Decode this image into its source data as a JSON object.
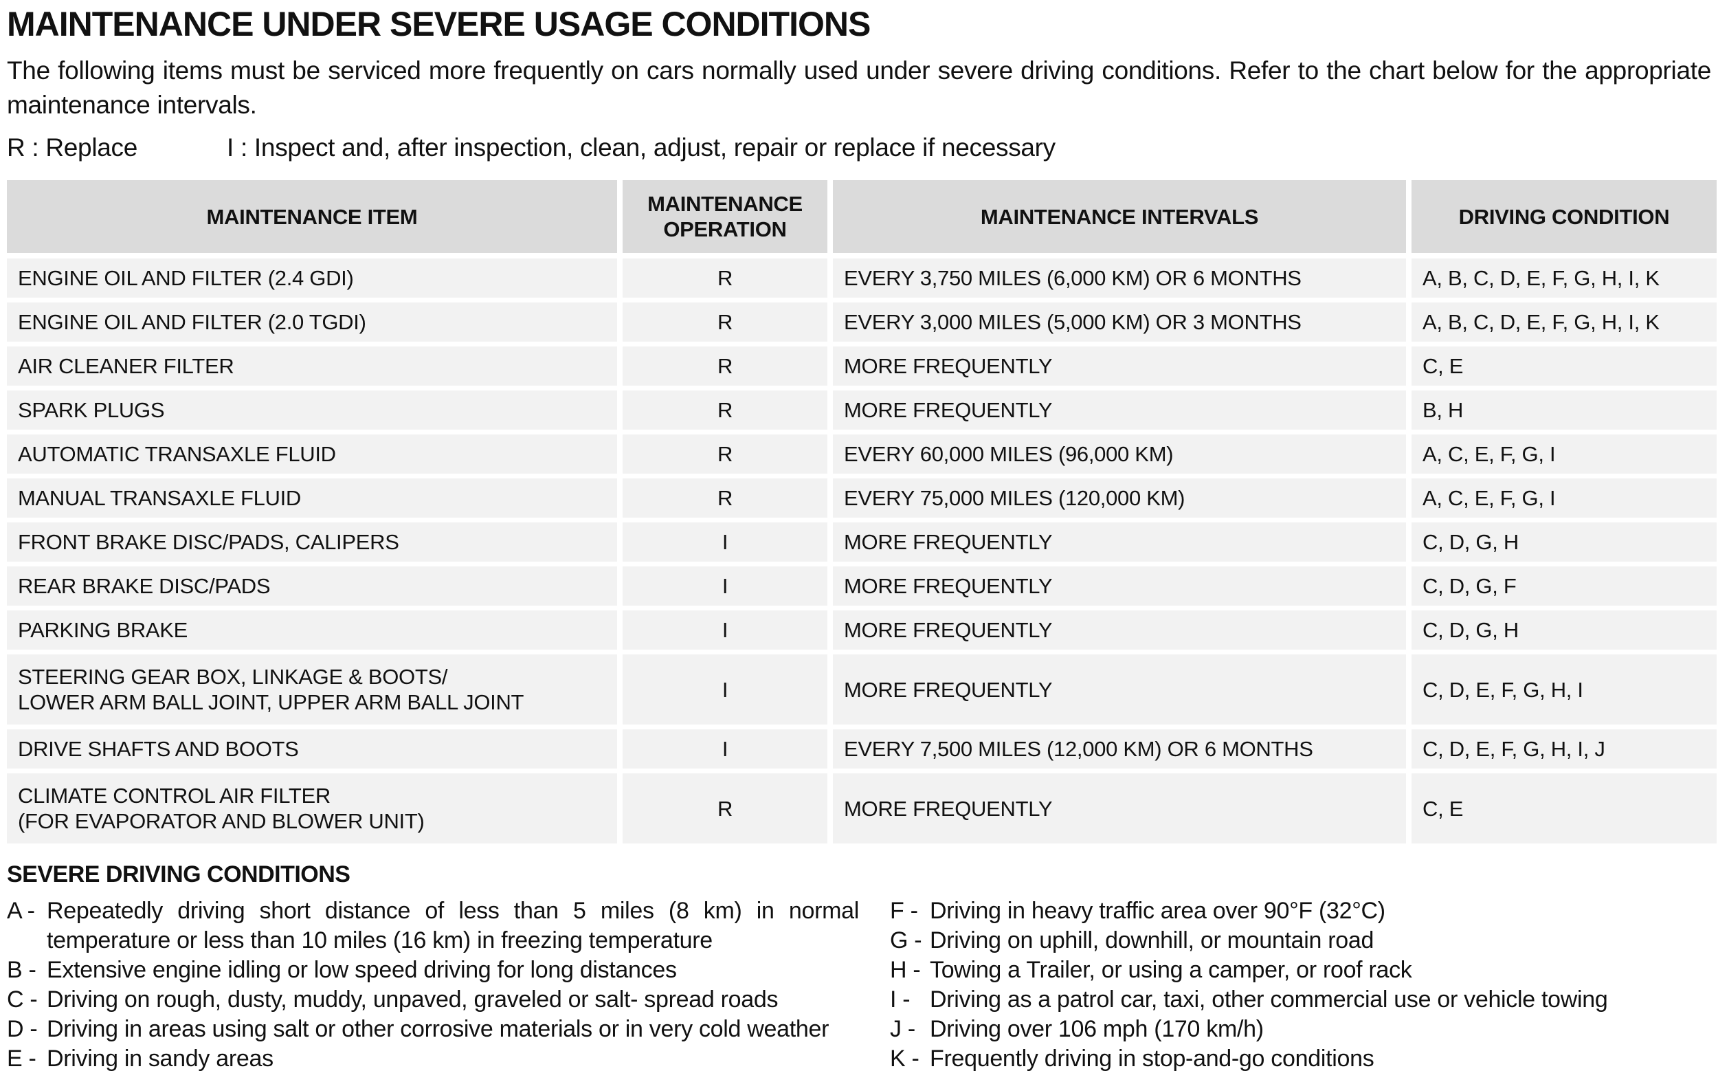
{
  "doc": {
    "title": "MAINTENANCE UNDER SEVERE USAGE CONDITIONS",
    "intro": "The following items must be serviced more frequently on cars normally used under severe driving conditions. Refer to the chart below for the appropriate maintenance intervals.",
    "legend_r": "R : Replace",
    "legend_i": "I : Inspect and, after inspection, clean, adjust, repair or replace if necessary"
  },
  "table": {
    "headers": {
      "item": "MAINTENANCE ITEM",
      "operation": "MAINTENANCE OPERATION",
      "intervals": "MAINTENANCE INTERVALS",
      "condition": "DRIVING CONDITION"
    },
    "rows": [
      {
        "item": "ENGINE OIL AND FILTER (2.4 GDI)",
        "operation": "R",
        "interval": "EVERY 3,750 MILES (6,000 KM) OR 6 MONTHS",
        "condition": "A, B, C, D, E, F, G, H, I, K"
      },
      {
        "item": "ENGINE OIL AND FILTER (2.0 TGDI)",
        "operation": "R",
        "interval": "EVERY 3,000 MILES (5,000 KM) OR 3 MONTHS",
        "condition": "A, B, C, D, E, F, G, H, I, K"
      },
      {
        "item": "AIR CLEANER FILTER",
        "operation": "R",
        "interval": "MORE FREQUENTLY",
        "condition": "C, E"
      },
      {
        "item": "SPARK PLUGS",
        "operation": "R",
        "interval": "MORE FREQUENTLY",
        "condition": "B, H"
      },
      {
        "item": "AUTOMATIC TRANSAXLE FLUID",
        "operation": "R",
        "interval": "EVERY 60,000 MILES (96,000 KM)",
        "condition": "A, C, E, F, G, I"
      },
      {
        "item": "MANUAL TRANSAXLE FLUID",
        "operation": "R",
        "interval": "EVERY 75,000 MILES (120,000 KM)",
        "condition": "A, C, E, F, G, I"
      },
      {
        "item": "FRONT BRAKE DISC/PADS, CALIPERS",
        "operation": "I",
        "interval": "MORE FREQUENTLY",
        "condition": "C, D, G, H"
      },
      {
        "item": "REAR BRAKE DISC/PADS",
        "operation": "I",
        "interval": "MORE FREQUENTLY",
        "condition": "C, D, G, F"
      },
      {
        "item": "PARKING BRAKE",
        "operation": "I",
        "interval": "MORE FREQUENTLY",
        "condition": "C, D, G, H"
      },
      {
        "item": "STEERING GEAR BOX, LINKAGE & BOOTS/\nLOWER ARM BALL JOINT, UPPER ARM BALL JOINT",
        "operation": "I",
        "interval": "MORE FREQUENTLY",
        "condition": "C, D, E, F, G, H, I"
      },
      {
        "item": "DRIVE SHAFTS AND BOOTS",
        "operation": "I",
        "interval": "EVERY 7,500 MILES (12,000 KM) OR 6 MONTHS",
        "condition": "C, D, E, F, G, H, I, J"
      },
      {
        "item": "CLIMATE CONTROL AIR FILTER\n(FOR EVAPORATOR AND BLOWER UNIT)",
        "operation": "R",
        "interval": "MORE FREQUENTLY",
        "condition": "C, E"
      }
    ]
  },
  "severe": {
    "heading": "SEVERE DRIVING CONDITIONS",
    "left": [
      {
        "label": "A -",
        "text": "Repeatedly driving short distance of less than 5 miles (8 km) in normal temperature or less than 10 miles (16 km) in freezing temperature"
      },
      {
        "label": "B -",
        "text": "Extensive engine idling or low speed driving for long distances"
      },
      {
        "label": "C -",
        "text": "Driving on rough, dusty, muddy, unpaved, graveled or salt- spread roads"
      },
      {
        "label": "D -",
        "text": "Driving in areas using salt or other corrosive materials or in very cold weather"
      },
      {
        "label": "E -",
        "text": "Driving in sandy areas"
      }
    ],
    "right": [
      {
        "label": "F -",
        "text": "Driving in heavy traffic area over 90°F (32°C)"
      },
      {
        "label": "G -",
        "text": "Driving on uphill, downhill, or mountain road"
      },
      {
        "label": "H -",
        "text": "Towing a Trailer, or using a camper, or roof rack"
      },
      {
        "label": "I -",
        "text": "Driving as a patrol car, taxi, other commercial use or vehicle towing"
      },
      {
        "label": "J -",
        "text": "Driving over 106 mph (170 km/h)"
      },
      {
        "label": "K -",
        "text": "Frequently driving in stop-and-go conditions"
      }
    ]
  },
  "colors": {
    "header_bg": "#dbdbdb",
    "row_bg": "#f2f2f2",
    "text": "#111111",
    "page_bg": "#ffffff"
  }
}
